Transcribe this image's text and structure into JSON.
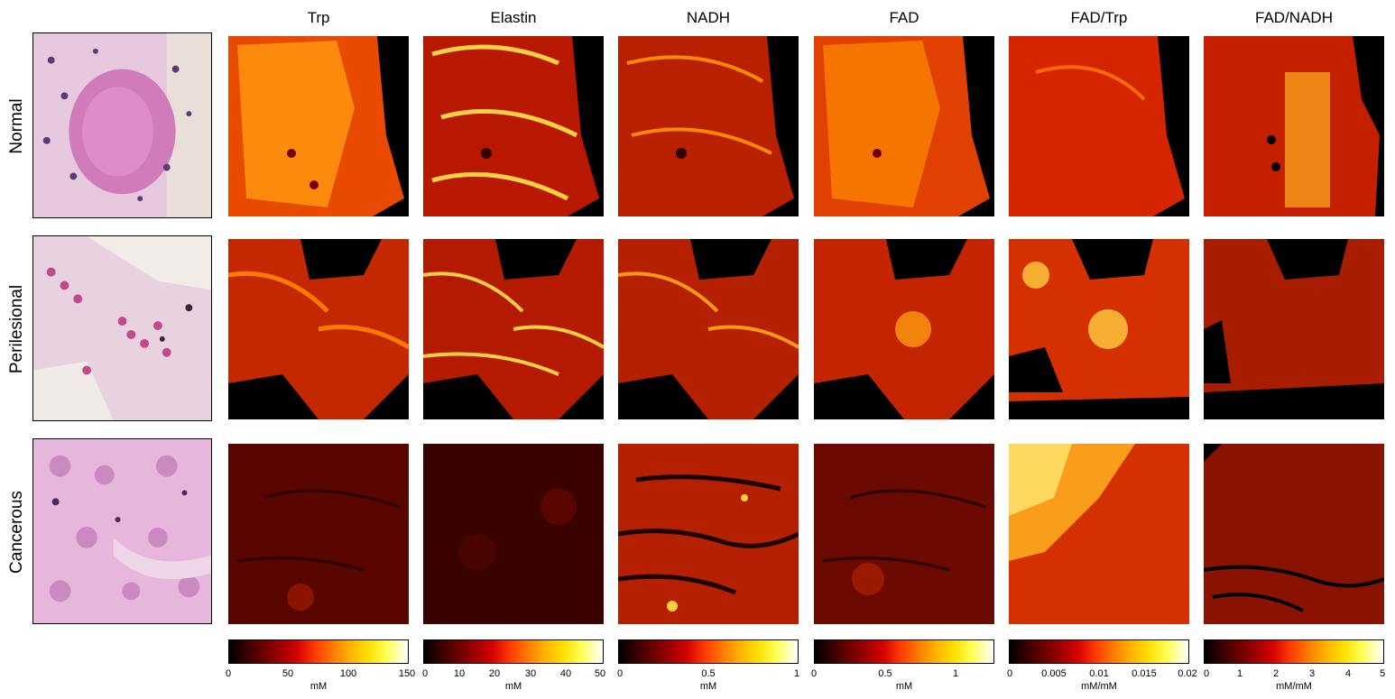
{
  "columns": [
    {
      "title": "Trp",
      "ticks": [
        "0",
        "50",
        "100",
        "150"
      ],
      "unit": "mM"
    },
    {
      "title": "Elastin",
      "ticks": [
        "0",
        "10",
        "20",
        "30",
        "40",
        "50"
      ],
      "unit": "mM"
    },
    {
      "title": "NADH",
      "ticks": [
        "0",
        "0.5",
        "1"
      ],
      "unit": "mM"
    },
    {
      "title": "FAD",
      "ticks": [
        "0",
        "0.5",
        "1"
      ],
      "unit": "mM"
    },
    {
      "title": "FAD/Trp",
      "ticks": [
        "0",
        "0.005",
        "0.01",
        "0.015",
        "0.02"
      ],
      "unit": "mM/mM"
    },
    {
      "title": "FAD/NADH",
      "ticks": [
        "0",
        "1",
        "2",
        "3",
        "4",
        "5"
      ],
      "unit": "mM/mM"
    }
  ],
  "rows": [
    {
      "label": "Normal"
    },
    {
      "label": "Perilesional"
    },
    {
      "label": "Cancerous"
    }
  ],
  "colorbar_ranges": [
    [
      0,
      150
    ],
    [
      0,
      50
    ],
    [
      0,
      1
    ],
    [
      0,
      1.2
    ],
    [
      0,
      0.02
    ],
    [
      0,
      5
    ]
  ],
  "colormap": "hot"
}
